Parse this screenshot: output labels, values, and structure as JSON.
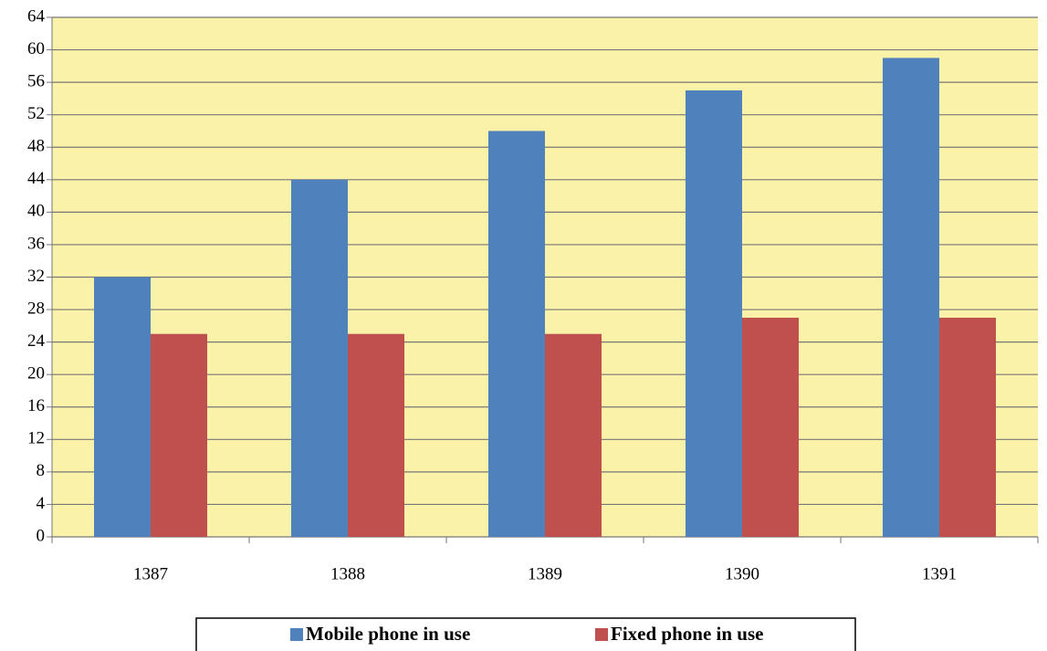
{
  "chart_data": {
    "type": "bar",
    "categories": [
      "1387",
      "1388",
      "1389",
      "1390",
      "1391"
    ],
    "series": [
      {
        "name": "Mobile phone in use",
        "color": "#4f81bd",
        "values": [
          32,
          44,
          50,
          55,
          59
        ]
      },
      {
        "name": "Fixed phone in use",
        "color": "#c0504d",
        "values": [
          25,
          25,
          25,
          27,
          27
        ]
      }
    ],
    "ylim": [
      0,
      64
    ],
    "yticks": [
      0,
      4,
      8,
      12,
      16,
      20,
      24,
      28,
      32,
      36,
      40,
      44,
      48,
      52,
      56,
      60,
      64
    ],
    "grid": true,
    "background": "#faf2a8",
    "legend": "bottom"
  }
}
